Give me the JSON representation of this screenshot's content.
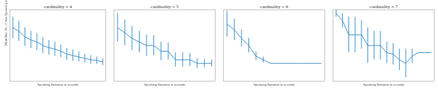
{
  "chart_data": [
    {
      "type": "line",
      "title": "cardinality = 4",
      "y_label": "Mean Max. No. of Sim. Speakers per T-Terminus",
      "x_label": "Speaking Duration in seconds",
      "x": [
        1,
        2,
        3,
        4,
        5,
        6,
        7,
        8,
        9,
        10,
        11,
        12,
        13,
        14,
        15,
        16
      ],
      "values": [
        0.75,
        0.7,
        0.62,
        0.58,
        0.55,
        0.5,
        0.47,
        0.45,
        0.42,
        0.38,
        0.36,
        0.34,
        0.32,
        0.3,
        0.29,
        0.27
      ],
      "error": [
        0.15,
        0.14,
        0.13,
        0.12,
        0.12,
        0.11,
        0.1,
        0.1,
        0.09,
        0.08,
        0.08,
        0.07,
        0.06,
        0.06,
        0.05,
        0.05
      ],
      "xlim": [
        0.5,
        16.5
      ],
      "ylim": [
        0,
        1
      ],
      "color": "#3a8fc8",
      "tick_labels": false
    },
    {
      "type": "line",
      "title": "cardinality = 5",
      "x_label": "Speaking Duration in seconds",
      "x": [
        1,
        2,
        3,
        4,
        5,
        6,
        7,
        8,
        9,
        10,
        11,
        12,
        13,
        14
      ],
      "values": [
        0.75,
        0.68,
        0.6,
        0.55,
        0.5,
        0.5,
        0.42,
        0.42,
        0.3,
        0.3,
        0.3,
        0.25,
        0.25,
        0.25
      ],
      "error": [
        0.2,
        0.18,
        0.17,
        0.15,
        0.15,
        0.14,
        0.13,
        0.12,
        0.1,
        0.1,
        0.09,
        0.07,
        0.06,
        0.05
      ],
      "xlim": [
        0.5,
        14.5
      ],
      "ylim": [
        0,
        1
      ],
      "color": "#3a8fc8",
      "tick_labels": false
    },
    {
      "type": "line",
      "title": "cardinality = 6",
      "x_label": "Speaking Duration in seconds",
      "x": [
        1,
        2,
        3,
        4,
        5,
        6,
        7,
        8,
        9,
        10,
        11,
        12,
        13,
        14
      ],
      "values": [
        0.8,
        0.72,
        0.6,
        0.5,
        0.35,
        0.3,
        0.25,
        0.25,
        0.25,
        0.25,
        0.25,
        0.25,
        0.25,
        0.25
      ],
      "error": [
        0.18,
        0.15,
        0.12,
        0.1,
        0.06,
        0.04,
        0,
        0,
        0,
        0,
        0,
        0,
        0,
        0
      ],
      "xlim": [
        0.5,
        14.5
      ],
      "ylim": [
        0,
        1
      ],
      "color": "#3a8fc8",
      "tick_labels": false
    },
    {
      "type": "line",
      "title": "cardinality = 7",
      "x_label": "Speaking Duration in seconds",
      "x": [
        1,
        2,
        3,
        4,
        5,
        6,
        7,
        8,
        9,
        10,
        11,
        12,
        13,
        14,
        15,
        16
      ],
      "values": [
        0.95,
        0.85,
        0.65,
        0.65,
        0.65,
        0.5,
        0.5,
        0.5,
        0.4,
        0.38,
        0.3,
        0.25,
        0.35,
        0.4,
        0.4,
        0.4
      ],
      "error": [
        0.05,
        0.1,
        0.25,
        0.25,
        0.2,
        0.25,
        0.2,
        0.2,
        0.15,
        0.15,
        0.15,
        0.2,
        0.1,
        0,
        0,
        0
      ],
      "xlim": [
        0.5,
        16.5
      ],
      "ylim": [
        0,
        1
      ],
      "color": "#3a8fc8",
      "tick_labels": false
    }
  ]
}
